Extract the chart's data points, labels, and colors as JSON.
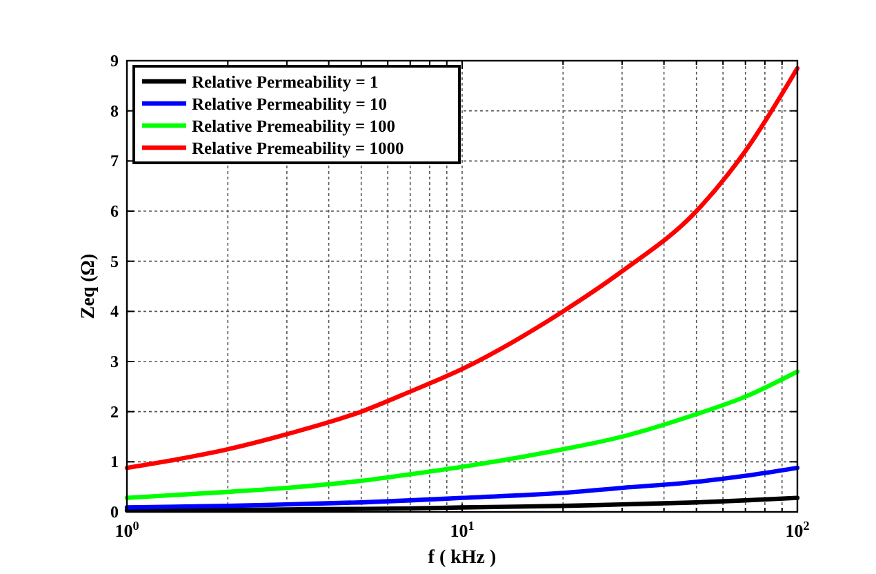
{
  "chart_data": {
    "type": "line",
    "xlabel": "f ( kHz )",
    "ylabel": "Zeq (Ω)",
    "log": "x",
    "grid": true,
    "legend": "top left",
    "line_style": "solid",
    "xlim": [
      1,
      100
    ],
    "ylim": [
      0,
      9
    ],
    "xticks": [
      {
        "value": 1,
        "label": "10$^{0}$"
      },
      {
        "value": 2,
        "label": null
      },
      {
        "value": 3,
        "label": null
      },
      {
        "value": 4,
        "label": null
      },
      {
        "value": 5,
        "label": null
      },
      {
        "value": 6,
        "label": null
      },
      {
        "value": 7,
        "label": null
      },
      {
        "value": 8,
        "label": null
      },
      {
        "value": 9,
        "label": null
      },
      {
        "value": 10,
        "label": "10$^{1}$"
      },
      {
        "value": 20,
        "label": null
      },
      {
        "value": 30,
        "label": null
      },
      {
        "value": 40,
        "label": null
      },
      {
        "value": 50,
        "label": null
      },
      {
        "value": 60,
        "label": null
      },
      {
        "value": 70,
        "label": null
      },
      {
        "value": 80,
        "label": null
      },
      {
        "value": 90,
        "label": null
      },
      {
        "value": 100,
        "label": "10$^{2}$"
      }
    ],
    "yticks": [
      0,
      1,
      2,
      3,
      4,
      5,
      6,
      7,
      8,
      9
    ],
    "x": [
      1,
      2,
      3,
      5,
      7,
      10,
      20,
      30,
      50,
      70,
      100
    ],
    "series": [
      {
        "name": "Relative Permeability = 1",
        "color": "#000000",
        "values": [
          0.03,
          0.04,
          0.05,
          0.06,
          0.07,
          0.09,
          0.12,
          0.15,
          0.19,
          0.23,
          0.28
        ]
      },
      {
        "name": "Relative Permeability = 10",
        "color": "#0000ff",
        "values": [
          0.09,
          0.12,
          0.15,
          0.19,
          0.23,
          0.28,
          0.38,
          0.48,
          0.6,
          0.72,
          0.88
        ]
      },
      {
        "name": "Relative Premeability = 100",
        "color": "#00ff00",
        "values": [
          0.28,
          0.4,
          0.48,
          0.62,
          0.75,
          0.9,
          1.25,
          1.5,
          1.95,
          2.3,
          2.8
        ]
      },
      {
        "name": "Relative Premeability = 1000",
        "color": "#ff0000",
        "values": [
          0.88,
          1.25,
          1.55,
          2.0,
          2.4,
          2.85,
          4.0,
          4.8,
          6.0,
          7.2,
          8.85
        ]
      }
    ]
  }
}
